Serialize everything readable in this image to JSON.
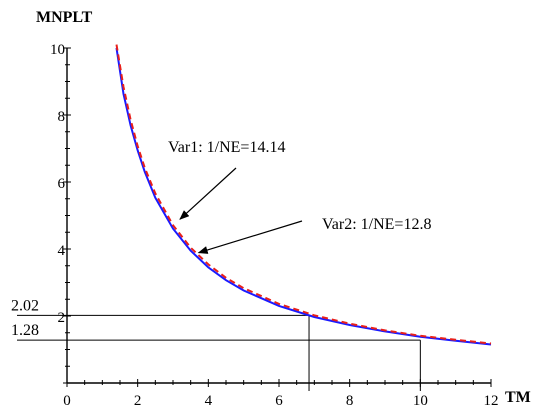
{
  "chart_data": {
    "type": "line",
    "title": "",
    "xlabel": "TM",
    "ylabel": "MNPLT",
    "xlim": [
      0,
      12
    ],
    "ylim": [
      0,
      10
    ],
    "x_ticks": [
      "0",
      "2",
      "4",
      "6",
      "8",
      "10",
      "12"
    ],
    "y_ticks": [
      "2",
      "4",
      "6",
      "8",
      "10"
    ],
    "series": [
      {
        "color": "#1a1aff",
        "line_style": "solid",
        "x": [
          1.4,
          1.6,
          1.8,
          2.0,
          2.2,
          2.5,
          3.0,
          3.5,
          4.0,
          4.5,
          5.0,
          6.0,
          7.0,
          8.0,
          9.0,
          10.0,
          11.0,
          12.0
        ],
        "y": [
          10.0,
          8.63,
          7.69,
          6.94,
          6.31,
          5.53,
          4.61,
          3.95,
          3.45,
          3.07,
          2.76,
          2.3,
          1.97,
          1.73,
          1.54,
          1.38,
          1.26,
          1.15
        ]
      },
      {
        "color": "#e8201a",
        "line_style": "dashed",
        "x": [
          1.4,
          1.6,
          1.8,
          2.0,
          2.2,
          2.5,
          3.0,
          3.5,
          4.0,
          4.5,
          5.0,
          6.0,
          7.0,
          8.0,
          9.0,
          10.0,
          11.0,
          12.0
        ],
        "y": [
          10.1,
          8.84,
          7.86,
          7.07,
          6.43,
          5.66,
          4.71,
          4.04,
          3.54,
          3.14,
          2.83,
          2.36,
          2.02,
          1.77,
          1.57,
          1.41,
          1.29,
          1.18
        ]
      }
    ],
    "reference_lines": [
      {
        "label": "2.02",
        "x": 6.85,
        "y": 2.02
      },
      {
        "label": "1.28",
        "x": 10.0,
        "y": 1.28
      }
    ],
    "annotations": [
      {
        "text": "Var1: 1/NE=14.14",
        "arrow_to": [
          3.0,
          4.71
        ]
      },
      {
        "text": "Var2: 1/NE=12.8",
        "arrow_to": [
          3.5,
          3.95
        ]
      }
    ],
    "grid": false,
    "legend": "none"
  }
}
